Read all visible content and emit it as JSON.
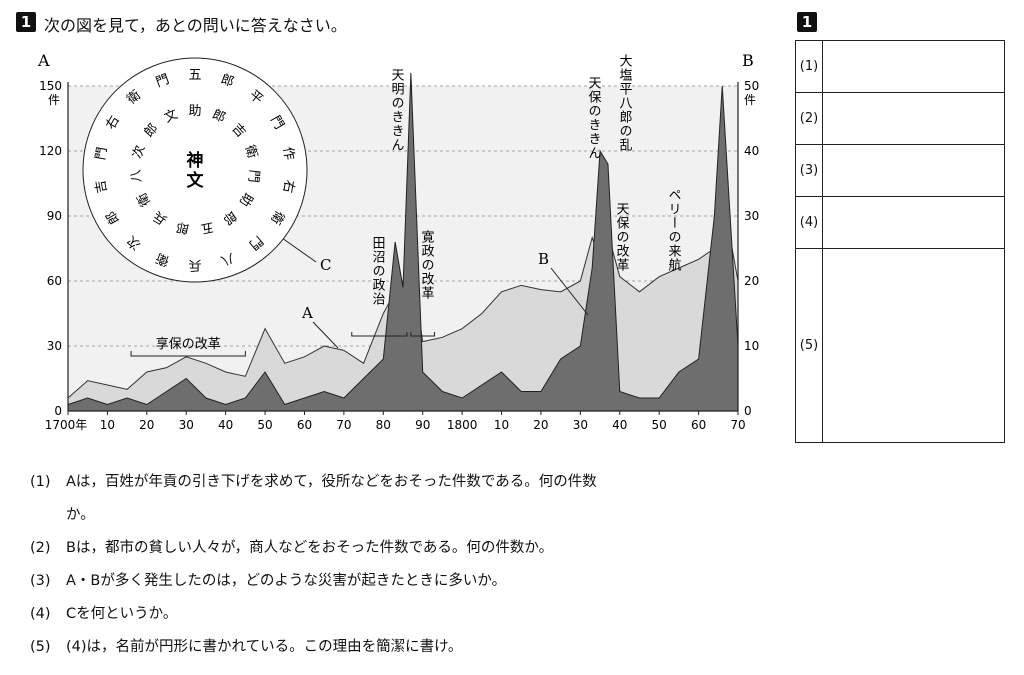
{
  "header": {
    "number": "1",
    "title": "次の図を見て，あとの問いに答えなさい。"
  },
  "answer": {
    "number": "1",
    "rows": [
      {
        "label": "(1)"
      },
      {
        "label": "(2)"
      },
      {
        "label": "(3)"
      },
      {
        "label": "(4)"
      },
      {
        "label": "(5)"
      }
    ]
  },
  "questions": [
    {
      "num": "(1)",
      "text": "Aは，百姓が年貢の引き下げを求めて，役所などをおそった件数である。何の件数",
      "cont": "か。"
    },
    {
      "num": "(2)",
      "text": "Bは，都市の貧しい人々が，商人などをおそった件数である。何の件数か。"
    },
    {
      "num": "(3)",
      "text": "A・Bが多く発生したのは，どのような災害が起きたときに多いか。"
    },
    {
      "num": "(4)",
      "text": "Cを何というか。"
    },
    {
      "num": "(5)",
      "text": "(4)は，名前が円形に書かれている。この理由を簡潔に書け。"
    }
  ],
  "chart_data": {
    "type": "area",
    "left_axis_label": "A",
    "left_unit": "件",
    "right_axis_label": "B",
    "right_unit": "件",
    "left_ticks": [
      "0",
      "30",
      "60",
      "90",
      "120",
      "150"
    ],
    "right_ticks": [
      "0",
      "10",
      "20",
      "30",
      "40",
      "50"
    ],
    "x_tick_labels": [
      "1700年",
      "10",
      "20",
      "30",
      "40",
      "50",
      "60",
      "70",
      "80",
      "90",
      "1800",
      "10",
      "20",
      "30",
      "40",
      "50",
      "60",
      "70"
    ],
    "xlim": [
      1700,
      1870
    ],
    "ylim_left": [
      0,
      150
    ],
    "ylim_right": [
      0,
      50
    ],
    "grid": "horizontal dashed",
    "series": [
      {
        "name": "A",
        "x": [
          1700,
          1705,
          1710,
          1715,
          1720,
          1725,
          1730,
          1735,
          1740,
          1745,
          1750,
          1755,
          1760,
          1765,
          1770,
          1775,
          1780,
          1783,
          1785,
          1787,
          1790,
          1795,
          1800,
          1805,
          1810,
          1815,
          1820,
          1825,
          1830,
          1833,
          1835,
          1837,
          1840,
          1845,
          1850,
          1855,
          1860,
          1864,
          1866,
          1868,
          1870
        ],
        "y": [
          6,
          14,
          12,
          10,
          18,
          20,
          25,
          22,
          18,
          16,
          38,
          22,
          25,
          30,
          28,
          22,
          45,
          55,
          60,
          70,
          32,
          34,
          38,
          45,
          55,
          58,
          56,
          55,
          60,
          80,
          70,
          82,
          62,
          55,
          62,
          66,
          70,
          75,
          90,
          80,
          60
        ]
      },
      {
        "name": "B",
        "x": [
          1700,
          1705,
          1710,
          1715,
          1720,
          1725,
          1730,
          1735,
          1740,
          1745,
          1750,
          1755,
          1760,
          1765,
          1770,
          1775,
          1780,
          1783,
          1785,
          1787,
          1790,
          1795,
          1800,
          1805,
          1810,
          1815,
          1820,
          1825,
          1830,
          1833,
          1835,
          1837,
          1840,
          1845,
          1850,
          1855,
          1860,
          1864,
          1866,
          1868,
          1870
        ],
        "y": [
          1,
          2,
          1,
          2,
          1,
          3,
          5,
          2,
          1,
          2,
          6,
          1,
          2,
          3,
          2,
          5,
          8,
          26,
          19,
          52,
          6,
          3,
          2,
          4,
          6,
          3,
          3,
          8,
          10,
          22,
          40,
          38,
          3,
          2,
          2,
          6,
          8,
          30,
          50,
          30,
          10
        ]
      }
    ],
    "annotations": [
      {
        "text": "享保の改革",
        "x_range": [
          1716,
          1745
        ]
      },
      {
        "text": "田沼の政治",
        "x_range": [
          1772,
          1786
        ]
      },
      {
        "text": "寛政の改革",
        "x_range": [
          1787,
          1793
        ]
      },
      {
        "text": "天明のききん",
        "x": 1783
      },
      {
        "text": "天保のききん",
        "x": 1834
      },
      {
        "text": "大塩平八郎の乱",
        "x": 1837
      },
      {
        "text": "天保の改革",
        "x_range": [
          1841,
          1843
        ]
      },
      {
        "text": "ペリーの来航",
        "x": 1853
      },
      {
        "text": "A",
        "x": 1768
      },
      {
        "text": "B",
        "x": 1822
      },
      {
        "text": "C",
        "x": 1765
      }
    ]
  },
  "document_c": {
    "center": "神文",
    "signature_rings": [
      "五郎 平門 作 右衛門 八 兵衛 次郎 吉 門 右衛門",
      "助 郎 吉 衛門 助 郎 五郎 兵衛 八 次郎 文"
    ]
  }
}
